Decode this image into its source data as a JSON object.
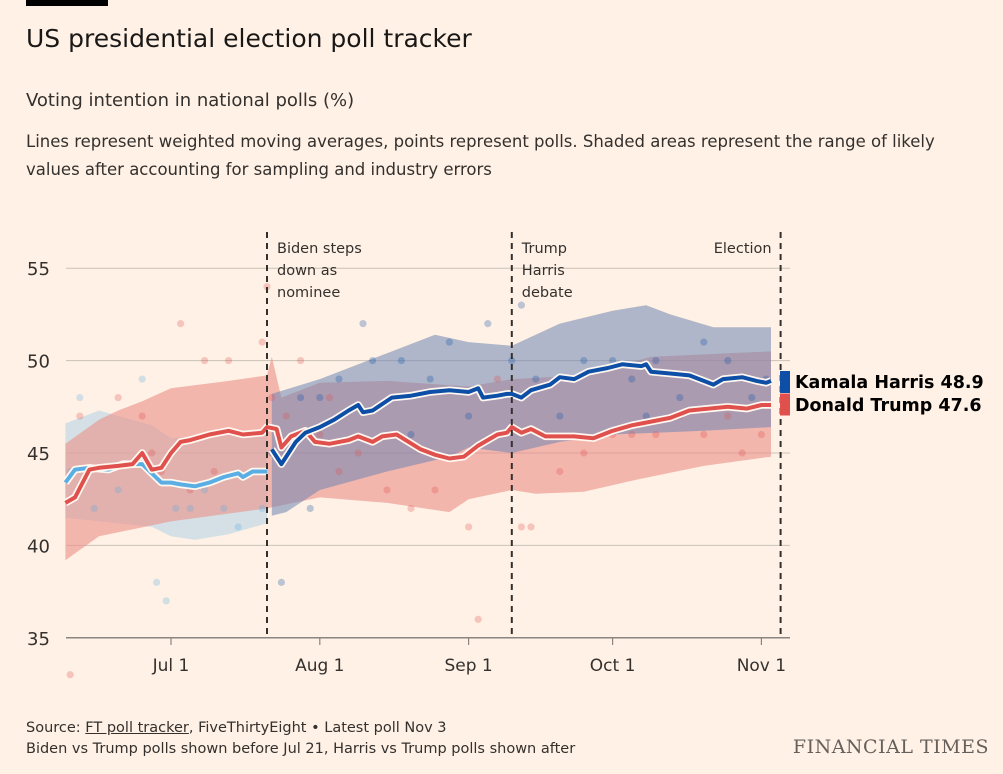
{
  "header": {
    "title": "US presidential election poll tracker",
    "subtitle": "Voting intention in national polls (%)",
    "description": "Lines represent weighted moving averages, points represent polls. Shaded areas represent the range of likely values after accounting for sampling and industry errors"
  },
  "footer": {
    "source_prefix": "Source: ",
    "source_link": "FT poll tracker",
    "source_rest": ", FiveThirtyEight • Latest poll Nov 3",
    "note": "Biden vs Trump polls shown before Jul 21, Harris vs Trump polls shown after",
    "brand": "FINANCIAL TIMES"
  },
  "chart_data": {
    "type": "line",
    "title": "US presidential election poll tracker",
    "ylabel": "Voting intention in national polls (%)",
    "ylim": [
      35,
      55
    ],
    "yticks": [
      "55",
      "50",
      "45",
      "40",
      "35"
    ],
    "xlim": [
      "2024-06-09",
      "2024-11-05"
    ],
    "xticks": [
      {
        "date": "2024-07-01",
        "label": "Jul 1"
      },
      {
        "date": "2024-08-01",
        "label": "Aug 1"
      },
      {
        "date": "2024-09-01",
        "label": "Sep 1"
      },
      {
        "date": "2024-10-01",
        "label": "Oct 1"
      },
      {
        "date": "2024-11-01",
        "label": "Nov 1"
      }
    ],
    "grid": true,
    "annotations": [
      {
        "date": "2024-07-21",
        "lines": [
          "Biden steps",
          "down as",
          "nominee"
        ],
        "align": "left"
      },
      {
        "date": "2024-09-10",
        "lines": [
          "Trump",
          "Harris",
          "debate"
        ],
        "align": "left"
      },
      {
        "date": "2024-11-05",
        "lines": [
          "Election"
        ],
        "align": "right"
      }
    ],
    "legend": {
      "placement": "right",
      "entries": [
        {
          "label": "Kamala Harris 48.9",
          "color": "#0d4ea6"
        },
        {
          "label": "Donald Trump 47.6",
          "color": "#e0504d"
        }
      ]
    },
    "series": [
      {
        "key": "trump",
        "color": "#e0504d",
        "band_color": "#eb8f87",
        "average": [
          [
            "2024-06-09",
            42.3
          ],
          [
            "2024-06-11",
            42.6
          ],
          [
            "2024-06-14",
            44.1
          ],
          [
            "2024-06-16",
            44.2
          ],
          [
            "2024-06-20",
            44.3
          ],
          [
            "2024-06-23",
            44.4
          ],
          [
            "2024-06-25",
            45.0
          ],
          [
            "2024-06-27",
            44.1
          ],
          [
            "2024-06-29",
            44.2
          ],
          [
            "2024-07-01",
            45.0
          ],
          [
            "2024-07-03",
            45.6
          ],
          [
            "2024-07-05",
            45.7
          ],
          [
            "2024-07-09",
            46.0
          ],
          [
            "2024-07-13",
            46.2
          ],
          [
            "2024-07-16",
            46.0
          ],
          [
            "2024-07-20",
            46.1
          ],
          [
            "2024-07-21",
            46.4
          ],
          [
            "2024-07-23",
            46.3
          ],
          [
            "2024-07-24",
            45.3
          ],
          [
            "2024-07-26",
            45.9
          ],
          [
            "2024-07-29",
            46.2
          ],
          [
            "2024-07-31",
            45.6
          ],
          [
            "2024-08-03",
            45.5
          ],
          [
            "2024-08-07",
            45.7
          ],
          [
            "2024-08-09",
            45.9
          ],
          [
            "2024-08-12",
            45.6
          ],
          [
            "2024-08-14",
            45.9
          ],
          [
            "2024-08-17",
            46.0
          ],
          [
            "2024-08-22",
            45.2
          ],
          [
            "2024-08-25",
            44.9
          ],
          [
            "2024-08-28",
            44.7
          ],
          [
            "2024-08-31",
            44.8
          ],
          [
            "2024-09-03",
            45.4
          ],
          [
            "2024-09-07",
            46.0
          ],
          [
            "2024-09-09",
            46.1
          ],
          [
            "2024-09-10",
            46.4
          ],
          [
            "2024-09-12",
            46.1
          ],
          [
            "2024-09-14",
            46.3
          ],
          [
            "2024-09-17",
            45.9
          ],
          [
            "2024-09-20",
            45.9
          ],
          [
            "2024-09-23",
            45.9
          ],
          [
            "2024-09-27",
            45.8
          ],
          [
            "2024-10-01",
            46.2
          ],
          [
            "2024-10-05",
            46.5
          ],
          [
            "2024-10-09",
            46.7
          ],
          [
            "2024-10-13",
            46.9
          ],
          [
            "2024-10-17",
            47.3
          ],
          [
            "2024-10-21",
            47.4
          ],
          [
            "2024-10-25",
            47.5
          ],
          [
            "2024-10-29",
            47.4
          ],
          [
            "2024-11-01",
            47.6
          ],
          [
            "2024-11-03",
            47.6
          ]
        ],
        "band_upper": [
          [
            "2024-06-09",
            45.5
          ],
          [
            "2024-06-16",
            46.8
          ],
          [
            "2024-06-20",
            47.3
          ],
          [
            "2024-06-25",
            47.8
          ],
          [
            "2024-07-01",
            48.5
          ],
          [
            "2024-07-13",
            48.9
          ],
          [
            "2024-07-21",
            49.2
          ],
          [
            "2024-07-22",
            50.2
          ],
          [
            "2024-07-24",
            48.0
          ],
          [
            "2024-08-01",
            48.8
          ],
          [
            "2024-08-15",
            48.9
          ],
          [
            "2024-09-01",
            48.6
          ],
          [
            "2024-09-10",
            49.0
          ],
          [
            "2024-09-25",
            49.2
          ],
          [
            "2024-10-09",
            50.2
          ],
          [
            "2024-10-25",
            50.4
          ],
          [
            "2024-11-03",
            50.5
          ]
        ],
        "band_lower": [
          [
            "2024-06-09",
            39.2
          ],
          [
            "2024-06-16",
            40.5
          ],
          [
            "2024-07-01",
            41.3
          ],
          [
            "2024-07-21",
            42.0
          ],
          [
            "2024-08-01",
            42.6
          ],
          [
            "2024-08-15",
            42.3
          ],
          [
            "2024-08-28",
            41.8
          ],
          [
            "2024-09-01",
            42.5
          ],
          [
            "2024-09-10",
            43.0
          ],
          [
            "2024-09-15",
            42.8
          ],
          [
            "2024-09-25",
            42.9
          ],
          [
            "2024-10-05",
            43.5
          ],
          [
            "2024-10-20",
            44.3
          ],
          [
            "2024-11-03",
            44.8
          ]
        ],
        "polls": [
          [
            "2024-06-10",
            33
          ],
          [
            "2024-06-12",
            47
          ],
          [
            "2024-06-20",
            48
          ],
          [
            "2024-06-25",
            47
          ],
          [
            "2024-06-27",
            45
          ],
          [
            "2024-06-29",
            44
          ],
          [
            "2024-07-03",
            52
          ],
          [
            "2024-07-05",
            43
          ],
          [
            "2024-07-08",
            50
          ],
          [
            "2024-07-10",
            44
          ],
          [
            "2024-07-13",
            50
          ],
          [
            "2024-07-20",
            51
          ],
          [
            "2024-07-21",
            54
          ],
          [
            "2024-07-22",
            48
          ],
          [
            "2024-07-25",
            47
          ],
          [
            "2024-07-28",
            50
          ],
          [
            "2024-08-01",
            46
          ],
          [
            "2024-08-03",
            48
          ],
          [
            "2024-08-05",
            44
          ],
          [
            "2024-08-09",
            45
          ],
          [
            "2024-08-15",
            43
          ],
          [
            "2024-08-20",
            42
          ],
          [
            "2024-08-25",
            43
          ],
          [
            "2024-09-01",
            41
          ],
          [
            "2024-09-03",
            36
          ],
          [
            "2024-09-07",
            49
          ],
          [
            "2024-09-12",
            41
          ],
          [
            "2024-09-14",
            41
          ],
          [
            "2024-09-20",
            44
          ],
          [
            "2024-09-25",
            45
          ],
          [
            "2024-10-01",
            46
          ],
          [
            "2024-10-05",
            46
          ],
          [
            "2024-10-10",
            46
          ],
          [
            "2024-10-15",
            47
          ],
          [
            "2024-10-20",
            46
          ],
          [
            "2024-10-25",
            47
          ],
          [
            "2024-10-28",
            45
          ],
          [
            "2024-11-01",
            46
          ]
        ]
      },
      {
        "key": "biden",
        "color": "#5aaee4",
        "band_color": "#b7d6e6",
        "average": [
          [
            "2024-06-09",
            43.4
          ],
          [
            "2024-06-11",
            44.1
          ],
          [
            "2024-06-14",
            44.2
          ],
          [
            "2024-06-18",
            44.1
          ],
          [
            "2024-06-21",
            44.4
          ],
          [
            "2024-06-25",
            44.4
          ],
          [
            "2024-06-27",
            43.9
          ],
          [
            "2024-06-29",
            43.4
          ],
          [
            "2024-07-01",
            43.4
          ],
          [
            "2024-07-03",
            43.3
          ],
          [
            "2024-07-06",
            43.2
          ],
          [
            "2024-07-09",
            43.4
          ],
          [
            "2024-07-12",
            43.7
          ],
          [
            "2024-07-15",
            43.9
          ],
          [
            "2024-07-16",
            43.7
          ],
          [
            "2024-07-18",
            44.0
          ],
          [
            "2024-07-21",
            44.0
          ]
        ],
        "band_upper": [
          [
            "2024-06-09",
            46.6
          ],
          [
            "2024-06-16",
            47.3
          ],
          [
            "2024-06-27",
            46.5
          ],
          [
            "2024-07-01",
            45.8
          ],
          [
            "2024-07-21",
            46.3
          ]
        ],
        "band_lower": [
          [
            "2024-06-09",
            41.5
          ],
          [
            "2024-06-27",
            41.0
          ],
          [
            "2024-07-01",
            40.5
          ],
          [
            "2024-07-06",
            40.3
          ],
          [
            "2024-07-13",
            40.6
          ],
          [
            "2024-07-21",
            41.2
          ]
        ],
        "polls": [
          [
            "2024-06-10",
            44
          ],
          [
            "2024-06-12",
            48
          ],
          [
            "2024-06-15",
            42
          ],
          [
            "2024-06-20",
            43
          ],
          [
            "2024-06-25",
            49
          ],
          [
            "2024-06-28",
            38
          ],
          [
            "2024-06-30",
            37
          ],
          [
            "2024-07-02",
            42
          ],
          [
            "2024-07-05",
            42
          ],
          [
            "2024-07-08",
            43
          ],
          [
            "2024-07-12",
            42
          ],
          [
            "2024-07-15",
            41
          ],
          [
            "2024-07-18",
            44
          ],
          [
            "2024-07-20",
            42
          ]
        ]
      },
      {
        "key": "harris",
        "color": "#0d4ea6",
        "band_color": "#6d85b2",
        "average": [
          [
            "2024-07-22",
            45.2
          ],
          [
            "2024-07-24",
            44.4
          ],
          [
            "2024-07-27",
            45.6
          ],
          [
            "2024-07-29",
            46.1
          ],
          [
            "2024-08-01",
            46.4
          ],
          [
            "2024-08-04",
            46.8
          ],
          [
            "2024-08-07",
            47.3
          ],
          [
            "2024-08-09",
            47.6
          ],
          [
            "2024-08-10",
            47.2
          ],
          [
            "2024-08-12",
            47.3
          ],
          [
            "2024-08-16",
            48.0
          ],
          [
            "2024-08-20",
            48.1
          ],
          [
            "2024-08-24",
            48.3
          ],
          [
            "2024-08-28",
            48.4
          ],
          [
            "2024-09-01",
            48.3
          ],
          [
            "2024-09-03",
            48.5
          ],
          [
            "2024-09-04",
            48.0
          ],
          [
            "2024-09-07",
            48.1
          ],
          [
            "2024-09-09",
            48.2
          ],
          [
            "2024-09-10",
            48.2
          ],
          [
            "2024-09-12",
            48.0
          ],
          [
            "2024-09-14",
            48.4
          ],
          [
            "2024-09-18",
            48.7
          ],
          [
            "2024-09-20",
            49.1
          ],
          [
            "2024-09-23",
            49.0
          ],
          [
            "2024-09-26",
            49.4
          ],
          [
            "2024-09-30",
            49.6
          ],
          [
            "2024-10-03",
            49.8
          ],
          [
            "2024-10-07",
            49.7
          ],
          [
            "2024-10-08",
            49.8
          ],
          [
            "2024-10-09",
            49.4
          ],
          [
            "2024-10-13",
            49.3
          ],
          [
            "2024-10-17",
            49.2
          ],
          [
            "2024-10-20",
            48.9
          ],
          [
            "2024-10-22",
            48.7
          ],
          [
            "2024-10-24",
            49.0
          ],
          [
            "2024-10-28",
            49.1
          ],
          [
            "2024-10-31",
            48.9
          ],
          [
            "2024-11-02",
            48.8
          ],
          [
            "2024-11-03",
            48.9
          ]
        ],
        "band_upper": [
          [
            "2024-07-22",
            48.2
          ],
          [
            "2024-08-01",
            49.0
          ],
          [
            "2024-08-15",
            50.4
          ],
          [
            "2024-08-25",
            51.4
          ],
          [
            "2024-09-01",
            51.0
          ],
          [
            "2024-09-10",
            50.8
          ],
          [
            "2024-09-20",
            52.0
          ],
          [
            "2024-10-01",
            52.7
          ],
          [
            "2024-10-08",
            53.0
          ],
          [
            "2024-10-13",
            52.5
          ],
          [
            "2024-10-22",
            51.8
          ],
          [
            "2024-11-03",
            51.8
          ]
        ],
        "band_lower": [
          [
            "2024-07-22",
            41.6
          ],
          [
            "2024-07-25",
            41.8
          ],
          [
            "2024-08-01",
            43.0
          ],
          [
            "2024-08-15",
            44.0
          ],
          [
            "2024-08-28",
            44.8
          ],
          [
            "2024-09-01",
            45.3
          ],
          [
            "2024-09-10",
            45.0
          ],
          [
            "2024-09-20",
            45.6
          ],
          [
            "2024-10-01",
            46.0
          ],
          [
            "2024-10-20",
            46.2
          ],
          [
            "2024-11-03",
            46.4
          ]
        ],
        "polls": [
          [
            "2024-07-22",
            45
          ],
          [
            "2024-07-24",
            38
          ],
          [
            "2024-07-28",
            48
          ],
          [
            "2024-07-30",
            42
          ],
          [
            "2024-08-01",
            48
          ],
          [
            "2024-08-05",
            49
          ],
          [
            "2024-08-10",
            52
          ],
          [
            "2024-08-12",
            50
          ],
          [
            "2024-08-18",
            50
          ],
          [
            "2024-08-20",
            46
          ],
          [
            "2024-08-24",
            49
          ],
          [
            "2024-08-28",
            51
          ],
          [
            "2024-09-01",
            47
          ],
          [
            "2024-09-05",
            52
          ],
          [
            "2024-09-10",
            50
          ],
          [
            "2024-09-12",
            53
          ],
          [
            "2024-09-15",
            49
          ],
          [
            "2024-09-20",
            47
          ],
          [
            "2024-09-25",
            50
          ],
          [
            "2024-10-01",
            50
          ],
          [
            "2024-10-05",
            49
          ],
          [
            "2024-10-08",
            47
          ],
          [
            "2024-10-10",
            50
          ],
          [
            "2024-10-15",
            48
          ],
          [
            "2024-10-20",
            51
          ],
          [
            "2024-10-25",
            50
          ],
          [
            "2024-10-30",
            48
          ],
          [
            "2024-11-02",
            49
          ]
        ]
      }
    ]
  }
}
